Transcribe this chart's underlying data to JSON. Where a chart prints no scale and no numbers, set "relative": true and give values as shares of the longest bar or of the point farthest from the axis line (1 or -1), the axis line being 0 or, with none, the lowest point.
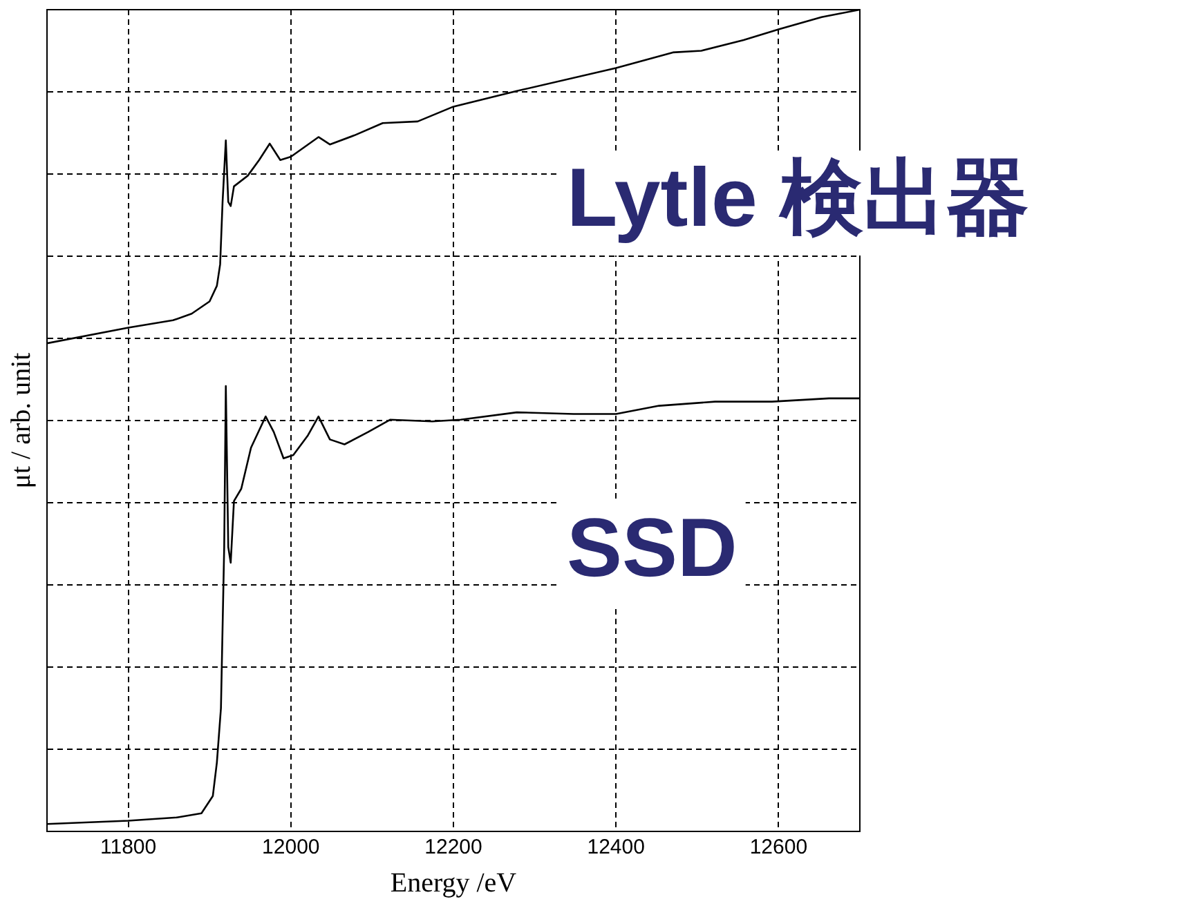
{
  "chart_data": {
    "type": "line",
    "xlabel": "Energy /eV",
    "ylabel": "μt / arb. unit",
    "xlim": [
      11700,
      12700
    ],
    "xticks": [
      11800,
      12000,
      12200,
      12400,
      12600
    ],
    "relative": true,
    "grid": true,
    "legend": false,
    "marker": "none",
    "line_style": "solid",
    "series": [
      {
        "name": "Lytle 検出器",
        "color": "#000000",
        "x": [
          11700,
          11800,
          11855,
          11878,
          11900,
          11909,
          11913,
          11916,
          11920,
          11923,
          11926,
          11930,
          11947,
          11961,
          11974,
          11987,
          12000,
          12034,
          12048,
          12078,
          12113,
          12156,
          12200,
          12278,
          12400,
          12470,
          12505,
          12557,
          12600,
          12653,
          12700
        ],
        "values": [
          0.594,
          0.613,
          0.622,
          0.63,
          0.645,
          0.664,
          0.69,
          0.766,
          0.841,
          0.766,
          0.761,
          0.785,
          0.798,
          0.817,
          0.837,
          0.817,
          0.821,
          0.845,
          0.836,
          0.847,
          0.862,
          0.864,
          0.882,
          0.901,
          0.929,
          0.948,
          0.95,
          0.963,
          0.976,
          0.991,
          1.0
        ]
      },
      {
        "name": "SSD",
        "color": "#000000",
        "x": [
          11700,
          11800,
          11860,
          11890,
          11904,
          11909,
          11914,
          11918,
          11920,
          11923,
          11926,
          11930,
          11939,
          11951,
          11969,
          11979,
          11991,
          12003,
          12021,
          12034,
          12048,
          12066,
          12095,
          12122,
          12174,
          12209,
          12278,
          12348,
          12400,
          12453,
          12522,
          12592,
          12662,
          12700
        ],
        "values": [
          0.009,
          0.013,
          0.017,
          0.022,
          0.043,
          0.084,
          0.15,
          0.346,
          0.542,
          0.346,
          0.327,
          0.402,
          0.417,
          0.467,
          0.505,
          0.486,
          0.454,
          0.458,
          0.482,
          0.505,
          0.477,
          0.471,
          0.486,
          0.501,
          0.499,
          0.501,
          0.51,
          0.508,
          0.508,
          0.518,
          0.523,
          0.523,
          0.527,
          0.527
        ]
      }
    ]
  }
}
